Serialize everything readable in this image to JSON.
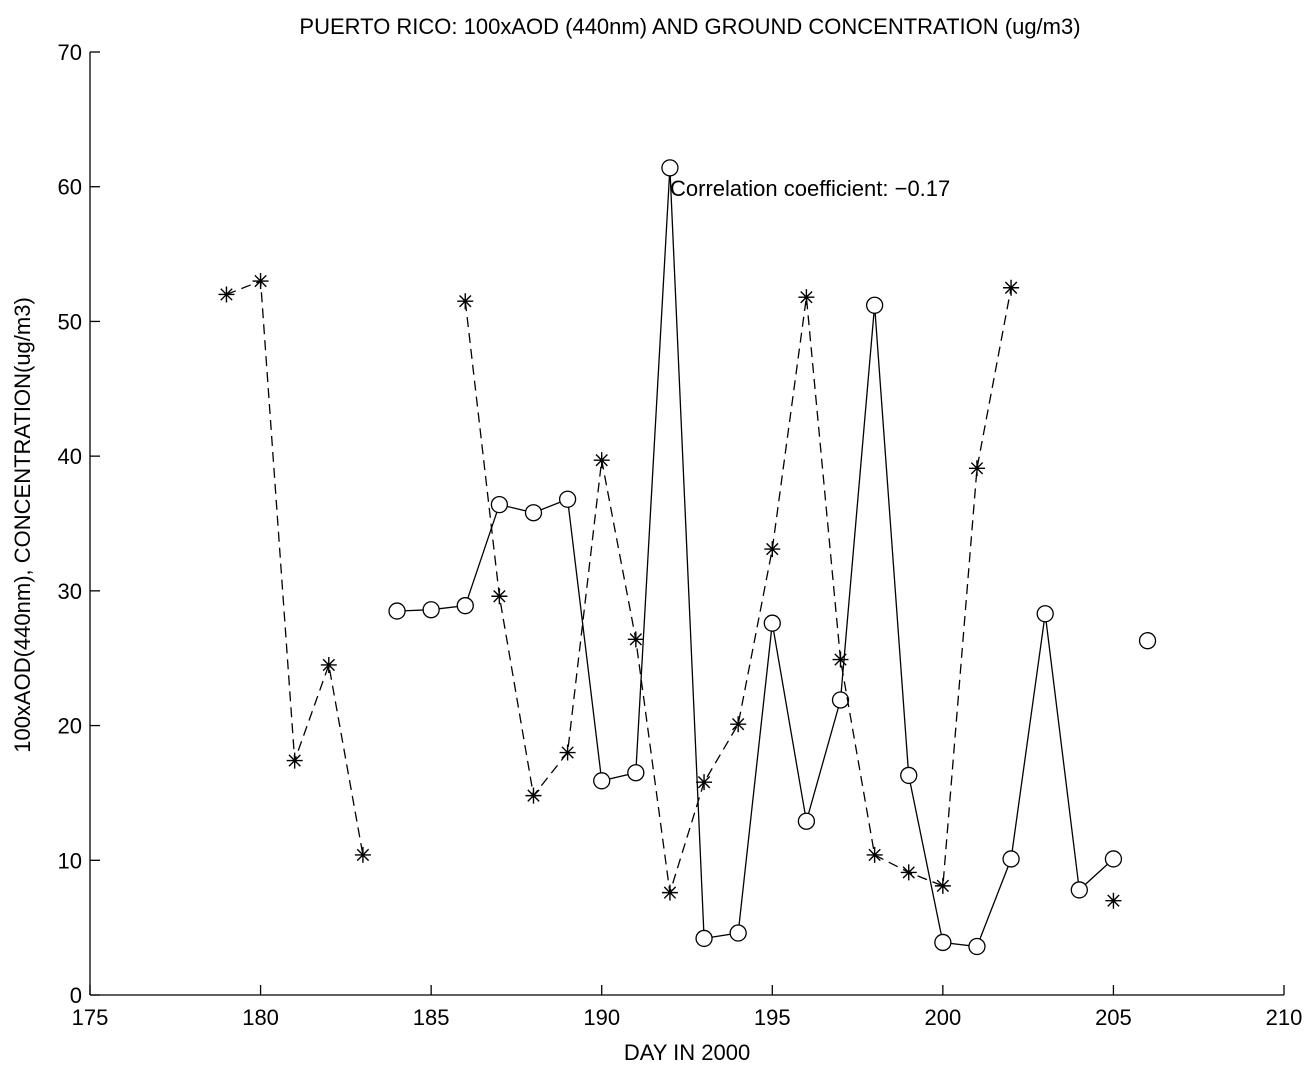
{
  "chart_data": {
    "type": "line",
    "title": "PUERTO RICO: 100xAOD (440nm) AND GROUND CONCENTRATION (ug/m3)",
    "xlabel": "DAY IN 2000",
    "ylabel": "100xAOD(440nm), CONCENTRATION(ug/m3)",
    "xlim": [
      175,
      210
    ],
    "ylim": [
      0,
      70
    ],
    "xticks": [
      175,
      180,
      185,
      190,
      195,
      200,
      205,
      210
    ],
    "yticks": [
      0,
      10,
      20,
      30,
      40,
      50,
      60,
      70
    ],
    "grid": false,
    "annotation": "Correlation coefficient:  −0.17",
    "colors": {
      "series": "#000000",
      "axes": "#000000",
      "background": "#ffffff"
    },
    "series": [
      {
        "marker": "circle",
        "line_style": "solid",
        "segments": [
          [
            [
              184,
              28.5
            ],
            [
              185,
              28.6
            ],
            [
              186,
              28.9
            ],
            [
              187,
              36.4
            ],
            [
              188,
              35.8
            ],
            [
              189,
              36.8
            ],
            [
              190,
              15.9
            ],
            [
              191,
              16.5
            ],
            [
              192,
              61.4
            ],
            [
              193,
              4.2
            ],
            [
              194,
              4.6
            ],
            [
              195,
              27.6
            ],
            [
              196,
              12.9
            ],
            [
              197,
              21.9
            ],
            [
              198,
              51.2
            ],
            [
              199,
              16.3
            ],
            [
              200,
              3.9
            ],
            [
              201,
              3.6
            ],
            [
              202,
              10.1
            ],
            [
              203,
              28.3
            ],
            [
              204,
              7.8
            ],
            [
              205,
              10.1
            ]
          ],
          [
            [
              206,
              26.3
            ]
          ]
        ]
      },
      {
        "marker": "asterisk",
        "line_style": "dashed",
        "segments": [
          [
            [
              179,
              52.0
            ],
            [
              180,
              53.0
            ],
            [
              181,
              17.4
            ],
            [
              182,
              24.5
            ],
            [
              183,
              10.4
            ]
          ],
          [
            [
              186,
              51.5
            ],
            [
              187,
              29.6
            ],
            [
              188,
              14.8
            ],
            [
              189,
              18.0
            ],
            [
              190,
              39.7
            ],
            [
              191,
              26.4
            ],
            [
              192,
              7.6
            ],
            [
              193,
              15.8
            ],
            [
              194,
              20.1
            ],
            [
              195,
              33.1
            ],
            [
              196,
              51.8
            ],
            [
              197,
              24.9
            ],
            [
              198,
              10.4
            ],
            [
              199,
              9.1
            ],
            [
              200,
              8.1
            ],
            [
              201,
              39.1
            ],
            [
              202,
              52.5
            ]
          ],
          [
            [
              205,
              7.0
            ]
          ]
        ]
      }
    ]
  }
}
